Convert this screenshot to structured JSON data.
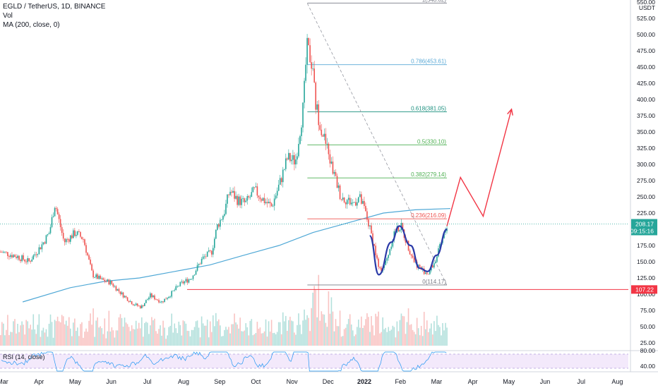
{
  "legend": {
    "symbol": "EGLD / TetherUS, 1D, BINANCE",
    "volume": "Vol",
    "ma": "MA (200, close, 0)"
  },
  "rsi_label": "RSI (14, close)",
  "colors": {
    "up": "#26a69a",
    "down": "#ef5350",
    "ma": "#4fa8d6",
    "fib_red": "#ef5350",
    "fib_teal": "#1a8f7e",
    "fib_green": "#4caf50",
    "fib_light": "#5aa9d6",
    "pattern_blue": "#2b3aa8",
    "projection": "#f23645",
    "support": "#f23645",
    "price_tag": "#26a69a"
  },
  "chart_data": {
    "type": "candlestick",
    "price_axis": {
      "ticks": [
        "25.00",
        "50.00",
        "75.00",
        "100.00",
        "125.00",
        "150.00",
        "175.00",
        "200.00",
        "225.00",
        "250.00",
        "275.00",
        "300.00",
        "325.00",
        "350.00",
        "375.00",
        "400.00",
        "425.00",
        "450.00",
        "475.00",
        "500.00",
        "525.00",
        "550.00"
      ],
      "unit": "USDT",
      "ylim": [
        12,
        552
      ]
    },
    "rsi_axis": {
      "ticks": [
        "80.00",
        "40.00"
      ]
    },
    "time_axis": [
      "Mar",
      "Apr",
      "May",
      "Jun",
      "Jul",
      "Aug",
      "Sep",
      "Oct",
      "Nov",
      "Dec",
      "2022",
      "Feb",
      "Mar",
      "Apr",
      "May",
      "Jun",
      "Jul",
      "Aug"
    ],
    "current_price": {
      "value": "208.17",
      "countdown": "09:15:16"
    },
    "support_level": {
      "value": "107.22"
    },
    "fibonacci": [
      {
        "label": "1(548.62)",
        "value": 548.62
      },
      {
        "label": "0.786(453.61)",
        "value": 453.61
      },
      {
        "label": "0.618(381.05)",
        "value": 381.05
      },
      {
        "label": "0.5(330.10)",
        "value": 330.1
      },
      {
        "label": "0.382(279.14)",
        "value": 279.14
      },
      {
        "label": "0.236(216.09)",
        "value": 216.09
      },
      {
        "label": "0(114.17)",
        "value": 114.17
      }
    ],
    "price_path": [
      [
        "2021-03-01",
        165
      ],
      [
        "2021-03-15",
        158
      ],
      [
        "2021-03-25",
        150
      ],
      [
        "2021-04-05",
        175
      ],
      [
        "2021-04-12",
        195
      ],
      [
        "2021-04-17",
        240
      ],
      [
        "2021-04-25",
        180
      ],
      [
        "2021-05-05",
        195
      ],
      [
        "2021-05-12",
        185
      ],
      [
        "2021-05-20",
        130
      ],
      [
        "2021-05-28",
        122
      ],
      [
        "2021-06-05",
        118
      ],
      [
        "2021-06-15",
        100
      ],
      [
        "2021-06-25",
        85
      ],
      [
        "2021-07-02",
        80
      ],
      [
        "2021-07-10",
        98
      ],
      [
        "2021-07-20",
        88
      ],
      [
        "2021-07-28",
        100
      ],
      [
        "2021-08-05",
        115
      ],
      [
        "2021-08-15",
        125
      ],
      [
        "2021-08-25",
        155
      ],
      [
        "2021-09-02",
        165
      ],
      [
        "2021-09-07",
        205
      ],
      [
        "2021-09-13",
        225
      ],
      [
        "2021-09-18",
        260
      ],
      [
        "2021-09-25",
        245
      ],
      [
        "2021-10-02",
        240
      ],
      [
        "2021-10-10",
        260
      ],
      [
        "2021-10-18",
        245
      ],
      [
        "2021-10-25",
        235
      ],
      [
        "2021-11-01",
        270
      ],
      [
        "2021-11-08",
        310
      ],
      [
        "2021-11-15",
        305
      ],
      [
        "2021-11-22",
        390
      ],
      [
        "2021-11-25",
        480
      ],
      [
        "2021-11-29",
        460
      ],
      [
        "2021-12-03",
        390
      ],
      [
        "2021-12-08",
        355
      ],
      [
        "2021-12-12",
        330
      ],
      [
        "2021-12-18",
        290
      ],
      [
        "2021-12-25",
        250
      ],
      [
        "2022-01-05",
        240
      ],
      [
        "2022-01-10",
        250
      ],
      [
        "2022-01-15",
        230
      ],
      [
        "2022-01-22",
        185
      ],
      [
        "2022-01-28",
        135
      ],
      [
        "2022-02-03",
        150
      ],
      [
        "2022-02-10",
        195
      ],
      [
        "2022-02-16",
        205
      ],
      [
        "2022-02-22",
        175
      ],
      [
        "2022-02-28",
        150
      ],
      [
        "2022-03-06",
        138
      ],
      [
        "2022-03-12",
        132
      ],
      [
        "2022-03-18",
        150
      ],
      [
        "2022-03-25",
        185
      ],
      [
        "2022-03-29",
        208.17
      ]
    ],
    "ma200": [
      [
        "2021-03-20",
        88
      ],
      [
        "2021-05-01",
        110
      ],
      [
        "2021-06-01",
        120
      ],
      [
        "2021-07-01",
        125
      ],
      [
        "2021-08-01",
        135
      ],
      [
        "2021-09-01",
        145
      ],
      [
        "2021-10-01",
        160
      ],
      [
        "2021-11-01",
        175
      ],
      [
        "2021-12-01",
        195
      ],
      [
        "2022-01-01",
        210
      ],
      [
        "2022-02-01",
        225
      ],
      [
        "2022-03-01",
        230
      ],
      [
        "2022-04-01",
        232
      ]
    ],
    "w_pattern": [
      [
        "2022-01-20",
        190
      ],
      [
        "2022-01-28",
        130
      ],
      [
        "2022-02-08",
        180
      ],
      [
        "2022-02-15",
        205
      ],
      [
        "2022-02-25",
        175
      ],
      [
        "2022-03-05",
        140
      ],
      [
        "2022-03-12",
        135
      ],
      [
        "2022-03-20",
        160
      ],
      [
        "2022-03-29",
        200
      ]
    ],
    "projection": [
      [
        "2022-03-29",
        205
      ],
      [
        "2022-04-10",
        280
      ],
      [
        "2022-04-30",
        220
      ],
      [
        "2022-05-25",
        385
      ]
    ],
    "trendline": [
      [
        "2021-11-26",
        548
      ],
      [
        "2022-03-29",
        114
      ]
    ],
    "date_range": [
      "2021-02-28",
      "2022-09-05"
    ]
  }
}
